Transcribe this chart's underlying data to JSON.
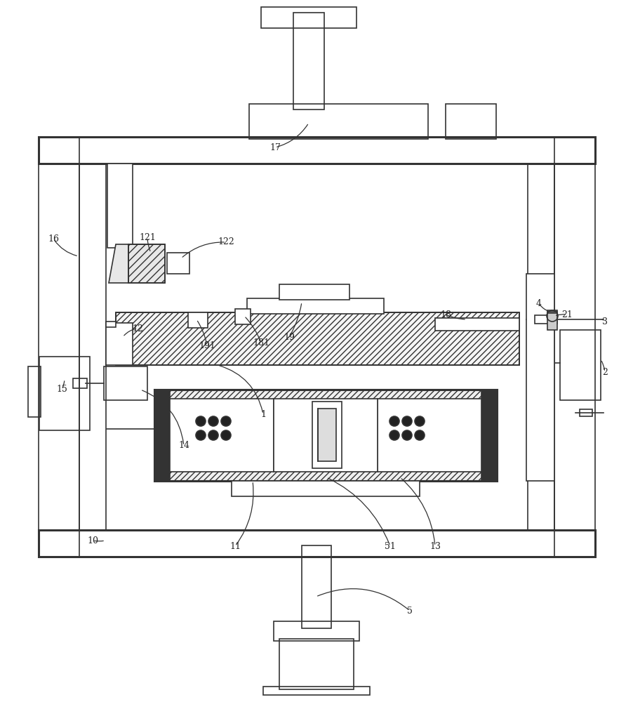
{
  "bg_color": "#ffffff",
  "line_color": "#333333",
  "fig_width": 9.03,
  "fig_height": 10.0,
  "lw_main": 1.2,
  "lw_thick": 2.2,
  "lw_thin": 0.7,
  "label_fontsize": 9.0,
  "label_color": "#222222"
}
